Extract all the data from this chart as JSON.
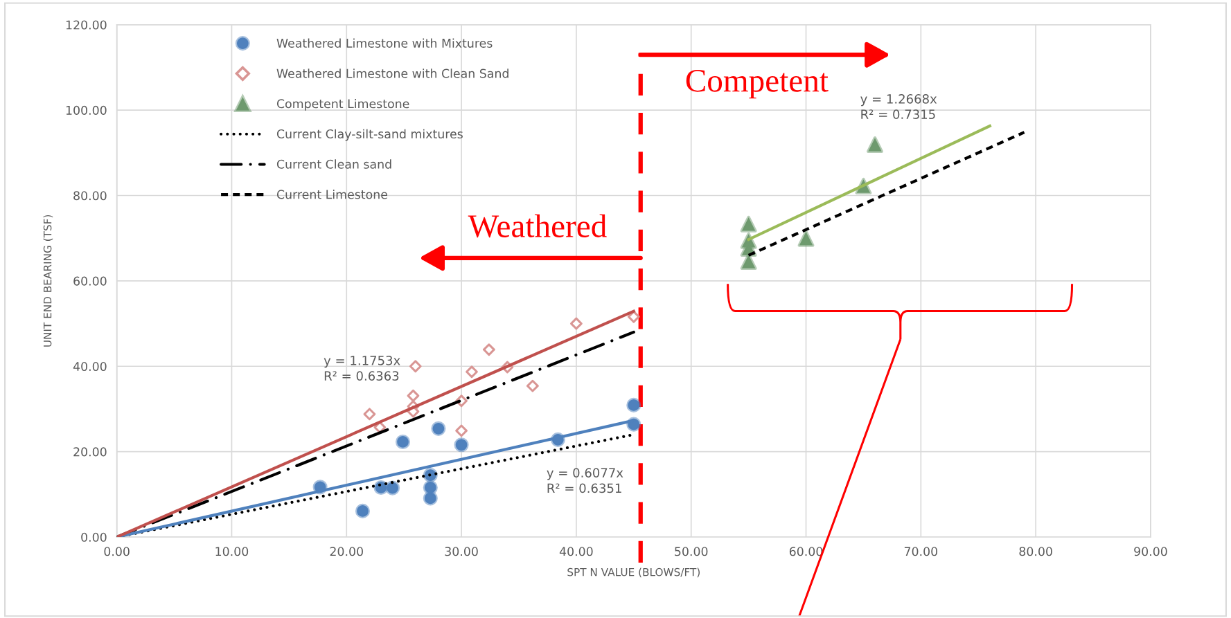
{
  "chart_data": {
    "type": "scatter",
    "xlabel": "SPT N VALUE (BLOWS/FT)",
    "ylabel": "UNIT END BEARING (TSF)",
    "xlim": [
      0,
      90
    ],
    "ylim": [
      0,
      120
    ],
    "xticks": [
      {
        "value": 0,
        "label": "0.00"
      },
      {
        "value": 10,
        "label": "10.00"
      },
      {
        "value": 20,
        "label": "20.00"
      },
      {
        "value": 30,
        "label": "30.00"
      },
      {
        "value": 40,
        "label": "40.00"
      },
      {
        "value": 50,
        "label": "50.00"
      },
      {
        "value": 60,
        "label": "60.00"
      },
      {
        "value": 70,
        "label": "70.00"
      },
      {
        "value": 80,
        "label": "80.00"
      },
      {
        "value": 90,
        "label": "90.00"
      }
    ],
    "yticks": [
      {
        "value": 0,
        "label": "0.00"
      },
      {
        "value": 20,
        "label": "20.00"
      },
      {
        "value": 40,
        "label": "40.00"
      },
      {
        "value": 60,
        "label": "60.00"
      },
      {
        "value": 80,
        "label": "80.00"
      },
      {
        "value": 100,
        "label": "100.00"
      },
      {
        "value": 120,
        "label": "120.00"
      }
    ],
    "grid": true,
    "legend": "top left",
    "series": [
      {
        "name": "Weathered Limestone with Mixtures",
        "marker": "circle",
        "color": "#4f81bd",
        "x": [
          17.7,
          21.4,
          23.0,
          24.0,
          24.9,
          27.3,
          27.3,
          27.3,
          28.0,
          30.0,
          38.4,
          45.0,
          45.0
        ],
        "values": [
          11.7,
          6.1,
          11.6,
          11.5,
          22.3,
          14.5,
          11.6,
          9.1,
          25.4,
          21.6,
          22.8,
          30.9,
          26.4
        ]
      },
      {
        "name": "Weathered Limestone with Clean Sand",
        "marker": "diamond",
        "color": "#d99694",
        "x": [
          22.0,
          22.9,
          26.0,
          25.8,
          25.8,
          25.8,
          30.0,
          30.0,
          30.9,
          32.4,
          34.0,
          36.2,
          40.0,
          45.0
        ],
        "values": [
          28.8,
          25.7,
          40.0,
          33.1,
          30.6,
          29.4,
          31.9,
          24.9,
          38.7,
          43.9,
          39.8,
          35.4,
          50.0,
          51.6
        ]
      },
      {
        "name": "Competent Limestone",
        "marker": "triangle",
        "color": "#6e9a6e",
        "x": [
          55.0,
          55.0,
          55.0,
          55.0,
          60.0,
          65.0,
          66.0
        ],
        "values": [
          73.3,
          69.4,
          67.6,
          64.5,
          69.9,
          82.2,
          91.9
        ]
      },
      {
        "name": "Current Clay-silt-sand mixtures",
        "type": "line",
        "line_style": "dotted",
        "color": "#000000",
        "x": [
          0,
          45
        ],
        "values": [
          0,
          24.0
        ]
      },
      {
        "name": "Current Clean sand",
        "type": "line",
        "line_style": "dashdot",
        "color": "#000000",
        "x": [
          0,
          45
        ],
        "values": [
          0,
          48.0
        ]
      },
      {
        "name": "Current Limestone",
        "type": "line",
        "line_style": "dashed",
        "color": "#000000",
        "x": [
          55,
          79
        ],
        "values": [
          66.0,
          94.8
        ]
      },
      {
        "type": "line",
        "line_style": "solid",
        "color": "#4f81bd",
        "x": [
          0,
          45
        ],
        "values": [
          0,
          27.3
        ]
      },
      {
        "type": "line",
        "line_style": "solid",
        "color": "#c0504d",
        "x": [
          0,
          45
        ],
        "values": [
          0,
          52.9
        ]
      },
      {
        "type": "line",
        "line_style": "solid",
        "color": "#9bbb59",
        "x": [
          55,
          76
        ],
        "values": [
          69.7,
          96.3
        ]
      }
    ],
    "ref_lines": [
      {
        "axis": "x",
        "value": 45.6,
        "color": "#ff0000",
        "line_style": "dashed"
      }
    ],
    "annotations": [
      "y = 1.1753x\nR² = 0.6363",
      "y = 0.6077x\nR² = 0.6351",
      "y = 1.2668x\nR² = 0.7315",
      "Weathered",
      "Competent"
    ]
  }
}
